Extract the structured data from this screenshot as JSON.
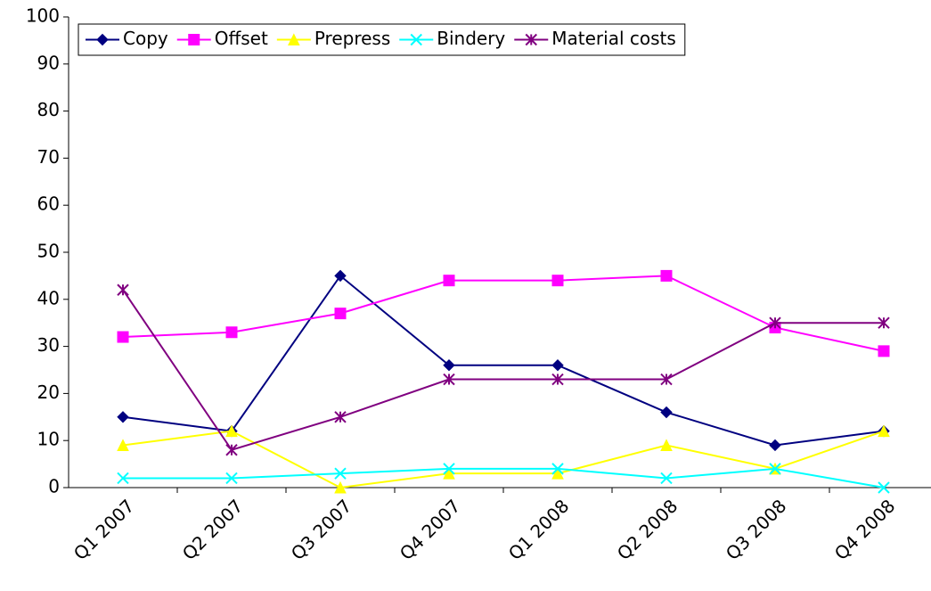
{
  "chart_data": {
    "type": "line",
    "categories": [
      "Q1 2007",
      "Q2 2007",
      "Q3 2007",
      "Q4 2007",
      "Q1 2008",
      "Q2 2008",
      "Q3 2008",
      "Q4 2008"
    ],
    "series": [
      {
        "name": "Copy",
        "color": "#000080",
        "marker": "diamond",
        "values": [
          15,
          12,
          45,
          26,
          26,
          16,
          9,
          12
        ]
      },
      {
        "name": "Offset",
        "color": "#ff00ff",
        "marker": "square",
        "values": [
          32,
          33,
          37,
          44,
          44,
          45,
          34,
          29
        ]
      },
      {
        "name": "Prepress",
        "color": "#ffff00",
        "marker": "triangle",
        "values": [
          9,
          12,
          0,
          3,
          3,
          9,
          4,
          12
        ]
      },
      {
        "name": "Bindery",
        "color": "#00ffff",
        "marker": "x",
        "values": [
          2,
          2,
          3,
          4,
          4,
          2,
          4,
          0
        ]
      },
      {
        "name": "Material costs",
        "color": "#800080",
        "marker": "asterisk",
        "values": [
          42,
          8,
          15,
          23,
          23,
          23,
          35,
          35
        ]
      }
    ],
    "ylim": [
      0,
      100
    ],
    "yticks": [
      0,
      10,
      20,
      30,
      40,
      50,
      60,
      70,
      80,
      90,
      100
    ],
    "grid": false,
    "legend": "top"
  }
}
